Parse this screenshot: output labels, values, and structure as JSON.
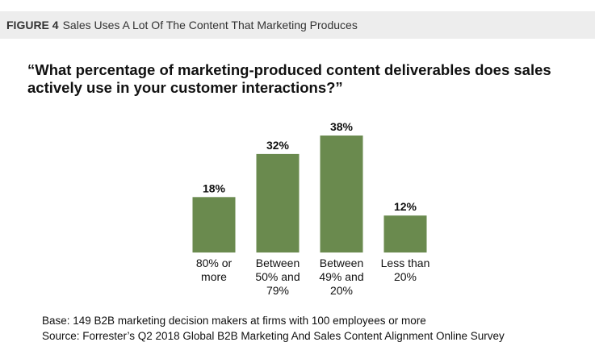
{
  "header": {
    "figure_label": "FIGURE 4",
    "figure_title": "Sales Uses A Lot Of The Content That Marketing Produces"
  },
  "question": "“What percentage of marketing-produced content deliverables does sales actively use in your customer interactions?”",
  "notes": {
    "base": "Base: 149 B2B marketing decision makers at firms with 100 employees or more",
    "source": "Source: Forrester’s Q2 2018 Global B2B Marketing And Sales Content Alignment Online Survey"
  },
  "colors": {
    "bar": "#6a8a4e",
    "header_bg": "#ededed"
  },
  "chart_data": {
    "type": "bar",
    "categories": [
      [
        "80% or",
        "more"
      ],
      [
        "Between",
        "50% and",
        "79%"
      ],
      [
        "Between",
        "49% and",
        "20%"
      ],
      [
        "Less than",
        "20%"
      ]
    ],
    "values": [
      18,
      32,
      38,
      12
    ],
    "data_labels": [
      "18%",
      "32%",
      "38%",
      "12%"
    ],
    "unit": "%",
    "ylim": [
      0,
      38
    ],
    "grid": false,
    "legend": "none"
  }
}
